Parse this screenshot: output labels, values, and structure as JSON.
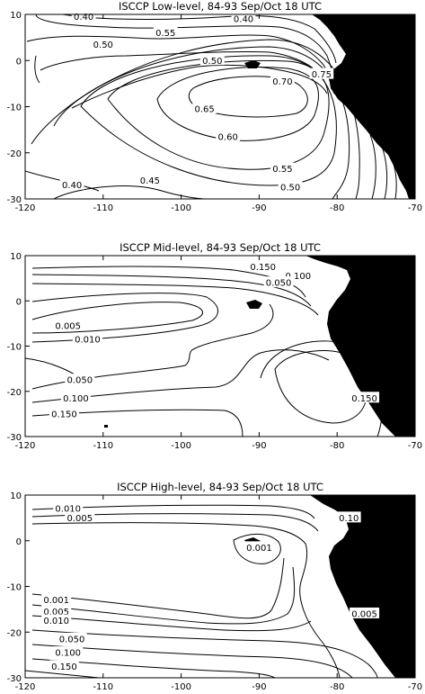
{
  "chart_data": [
    {
      "type": "contour",
      "title": "ISCCP Low-level, 84-93 Sep/Oct 18 UTC",
      "xlim": [
        -120,
        -70
      ],
      "ylim": [
        -30,
        10
      ],
      "xticks": [
        "-120",
        "-110",
        "-100",
        "-90",
        "-80",
        "-70"
      ],
      "yticks": [
        "10",
        "0",
        "-10",
        "-20",
        "-30"
      ],
      "contour_labels": [
        {
          "text": "0.40",
          "lon": -112.5,
          "lat": 9.5
        },
        {
          "text": "0.40",
          "lon": -92,
          "lat": 9
        },
        {
          "text": "0.55",
          "lon": -102,
          "lat": 6
        },
        {
          "text": "0.50",
          "lon": -110,
          "lat": 3.5
        },
        {
          "text": "0.50",
          "lon": -96,
          "lat": 0
        },
        {
          "text": "0.70",
          "lon": -87,
          "lat": -4.5
        },
        {
          "text": "0.75",
          "lon": -82,
          "lat": -3
        },
        {
          "text": "0.65",
          "lon": -97,
          "lat": -10.5
        },
        {
          "text": "0.60",
          "lon": -94,
          "lat": -16.5
        },
        {
          "text": "0.55",
          "lon": -87,
          "lat": -23.5
        },
        {
          "text": "0.50",
          "lon": -86,
          "lat": -27.5
        },
        {
          "text": "0.45",
          "lon": -104,
          "lat": -26
        },
        {
          "text": "0.40",
          "lon": -114,
          "lat": -27
        }
      ]
    },
    {
      "type": "contour",
      "title": "ISCCP Mid-level, 84-93 Sep/Oct 18 UTC",
      "xlim": [
        -120,
        -70
      ],
      "ylim": [
        -30,
        10
      ],
      "xticks": [
        "-120",
        "-110",
        "-100",
        "-90",
        "-80",
        "-70"
      ],
      "yticks": [
        "10",
        "0",
        "-10",
        "-20",
        "-30"
      ],
      "contour_labels": [
        {
          "text": "0.150",
          "lon": -89.5,
          "lat": 7.5
        },
        {
          "text": "0.100",
          "lon": -85,
          "lat": 5.5
        },
        {
          "text": "0.050",
          "lon": -87.5,
          "lat": 4
        },
        {
          "text": "0.005",
          "lon": -114.5,
          "lat": -5.5
        },
        {
          "text": "0.010",
          "lon": -112,
          "lat": -8.5
        },
        {
          "text": "0.050",
          "lon": -113,
          "lat": -17.5
        },
        {
          "text": "0.100",
          "lon": -113.5,
          "lat": -21.5
        },
        {
          "text": "0.150",
          "lon": -115,
          "lat": -25
        },
        {
          "text": "0.150",
          "lon": -76.5,
          "lat": -21.5
        }
      ]
    },
    {
      "type": "contour",
      "title": "ISCCP High-level, 84-93 Sep/Oct 18 UTC",
      "xlim": [
        -120,
        -70
      ],
      "ylim": [
        -30,
        10
      ],
      "xticks": [
        "-120",
        "-110",
        "-100",
        "-90",
        "-80",
        "-70"
      ],
      "yticks": [
        "10",
        "0",
        "-10",
        "-20",
        "-30"
      ],
      "contour_labels": [
        {
          "text": "0.010",
          "lon": -114.5,
          "lat": 7
        },
        {
          "text": "0.005",
          "lon": -113,
          "lat": 5
        },
        {
          "text": "0.001",
          "lon": -90,
          "lat": -1.5
        },
        {
          "text": "0.10",
          "lon": -78.5,
          "lat": 5
        },
        {
          "text": "0.001",
          "lon": -116,
          "lat": -13
        },
        {
          "text": "0.005",
          "lon": -116,
          "lat": -15.5
        },
        {
          "text": "0.010",
          "lon": -116,
          "lat": -17.5
        },
        {
          "text": "0.005",
          "lon": -76.5,
          "lat": -16
        },
        {
          "text": "0.050",
          "lon": -114,
          "lat": -21.5
        },
        {
          "text": "0.100",
          "lon": -114.5,
          "lat": -24.5
        },
        {
          "text": "0.150",
          "lon": -115,
          "lat": -27.5
        }
      ]
    }
  ]
}
